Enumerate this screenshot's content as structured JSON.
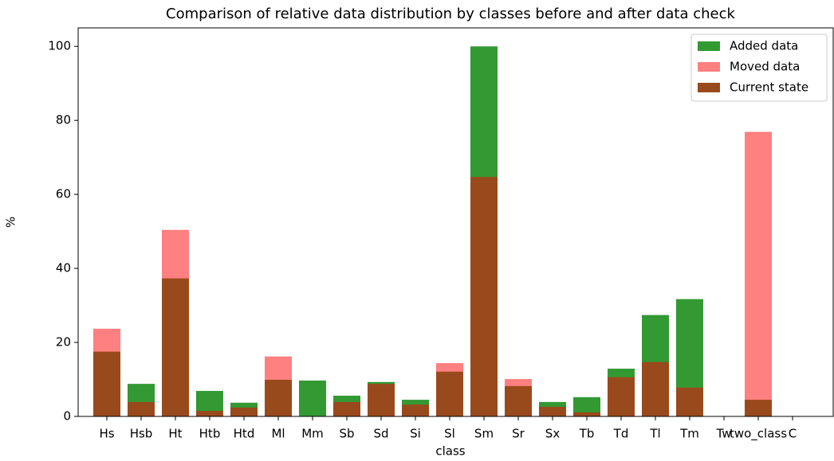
{
  "chart_data": {
    "type": "bar",
    "title": "Comparison of relative data distribution by classes before and after data check",
    "x_label": "class",
    "y_label": "%",
    "categories": [
      "Hs",
      "Hsb",
      "Ht",
      "Htb",
      "Htd",
      "Ml",
      "Mm",
      "Sb",
      "Sd",
      "Si",
      "Sl",
      "Sm",
      "Sr",
      "Sx",
      "Tb",
      "Td",
      "Tl",
      "Tm",
      "Tw",
      "two_class",
      "C"
    ],
    "series": [
      {
        "name": "Added data",
        "color": "#339933",
        "values": [
          null,
          8.8,
          null,
          6.9,
          3.7,
          null,
          9.7,
          5.6,
          9.3,
          4.5,
          null,
          100,
          null,
          3.9,
          5.2,
          12.9,
          27.4,
          31.7,
          null,
          null,
          null
        ]
      },
      {
        "name": "Moved data",
        "color": "#ff8080",
        "values": [
          23.7,
          null,
          50.4,
          null,
          null,
          16.2,
          null,
          null,
          null,
          null,
          14.4,
          null,
          10.1,
          null,
          null,
          null,
          null,
          null,
          null,
          76.9,
          null
        ]
      },
      {
        "name": "Current state",
        "color": "#994a1c",
        "values": [
          17.5,
          3.9,
          37.3,
          1.5,
          2.4,
          9.9,
          null,
          3.9,
          8.8,
          3.2,
          12.1,
          64.7,
          8.2,
          2.6,
          1.1,
          10.6,
          14.7,
          7.8,
          null,
          4.5,
          null
        ]
      }
    ],
    "ylim": [
      0,
      105
    ],
    "yticks": [
      0,
      20,
      40,
      60,
      80,
      100
    ],
    "legend": "upper right"
  }
}
